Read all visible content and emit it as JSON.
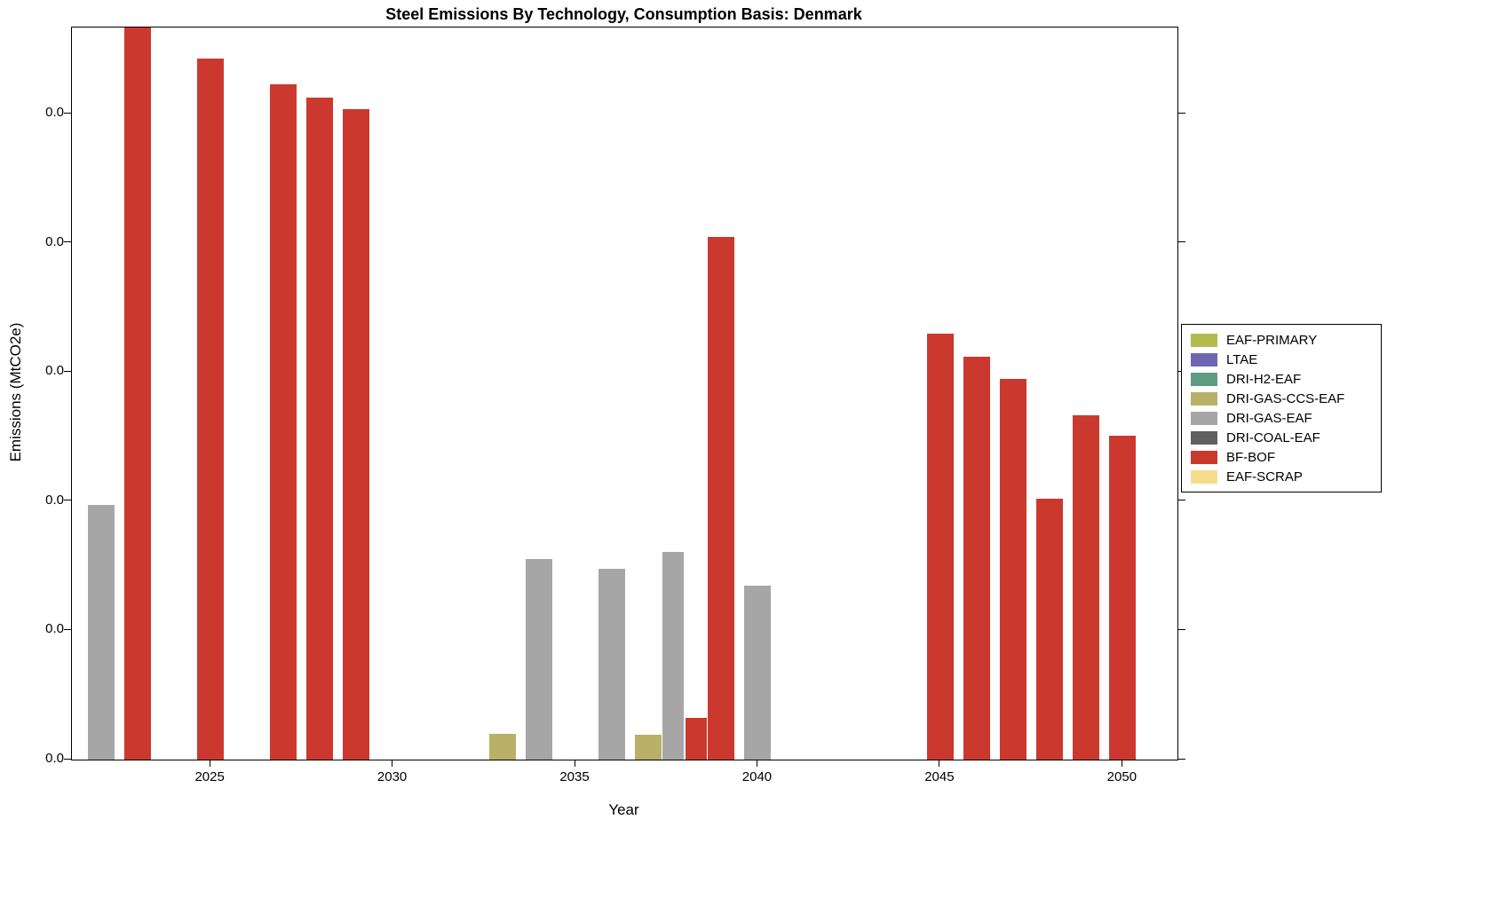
{
  "page": {
    "background": "#ffffff"
  },
  "chart_data": {
    "type": "bar",
    "title": "Steel Emissions By Technology, Consumption Basis: Denmark",
    "xlabel": "Year",
    "ylabel": "Emissions (MtCO2e)",
    "xlim": [
      2021.2,
      2051.5
    ],
    "ylim": [
      0,
      0.0567
    ],
    "xticks": [
      2025,
      2030,
      2035,
      2040,
      2045,
      2050
    ],
    "ytick_values": [
      0,
      0.01,
      0.02,
      0.03,
      0.04,
      0.05
    ],
    "ytick_labels": [
      "0.0",
      "0.0",
      "0.0",
      "0.0",
      "0.0",
      "0.0"
    ],
    "grid": false,
    "legend_position": "outside-right",
    "series": [
      {
        "name": "EAF-PRIMARY",
        "color": "#b3bb4f"
      },
      {
        "name": "LTAE",
        "color": "#6f66b2"
      },
      {
        "name": "DRI-H2-EAF",
        "color": "#5f9b80"
      },
      {
        "name": "DRI-GAS-CCS-EAF",
        "color": "#b9b167"
      },
      {
        "name": "DRI-GAS-EAF",
        "color": "#a6a6a6"
      },
      {
        "name": "DRI-COAL-EAF",
        "color": "#5f5f5f"
      },
      {
        "name": "BF-BOF",
        "color": "#cb392e"
      },
      {
        "name": "EAF-SCRAP",
        "color": "#f7dc8e"
      }
    ],
    "bars": [
      {
        "year": 2022,
        "series": "DRI-GAS-EAF",
        "value": 0.0197
      },
      {
        "year": 2023,
        "series": "BF-BOF",
        "value": 0.0567
      },
      {
        "year": 2025,
        "series": "BF-BOF",
        "value": 0.0543
      },
      {
        "year": 2027,
        "series": "BF-BOF",
        "value": 0.0523
      },
      {
        "year": 2028,
        "series": "BF-BOF",
        "value": 0.0513
      },
      {
        "year": 2029,
        "series": "BF-BOF",
        "value": 0.0504
      },
      {
        "year": 2033,
        "series": "DRI-GAS-CCS-EAF",
        "value": 0.002
      },
      {
        "year": 2034,
        "series": "DRI-GAS-EAF",
        "value": 0.0155
      },
      {
        "year": 2036,
        "series": "DRI-GAS-EAF",
        "value": 0.0148
      },
      {
        "year": 2037,
        "series": "DRI-GAS-CCS-EAF",
        "value": 0.0019
      },
      {
        "year": 2038,
        "series": "DRI-GAS-EAF",
        "value": 0.0161
      },
      {
        "year": 2038,
        "series": "BF-BOF",
        "value": 0.0032
      },
      {
        "year": 2039,
        "series": "BF-BOF",
        "value": 0.0405
      },
      {
        "year": 2040,
        "series": "DRI-GAS-EAF",
        "value": 0.0135
      },
      {
        "year": 2045,
        "series": "BF-BOF",
        "value": 0.033
      },
      {
        "year": 2046,
        "series": "BF-BOF",
        "value": 0.0312
      },
      {
        "year": 2047,
        "series": "BF-BOF",
        "value": 0.0295
      },
      {
        "year": 2048,
        "series": "BF-BOF",
        "value": 0.0202
      },
      {
        "year": 2049,
        "series": "BF-BOF",
        "value": 0.0267
      },
      {
        "year": 2050,
        "series": "BF-BOF",
        "value": 0.0251
      }
    ]
  }
}
